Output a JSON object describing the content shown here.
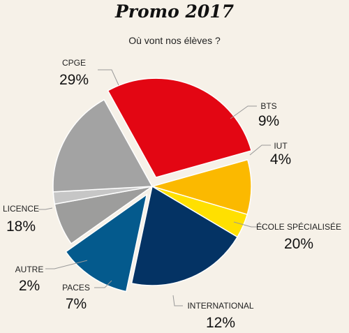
{
  "chart_data": {
    "type": "pie",
    "title": "Promo 2017",
    "subtitle": "Où vont nos élèves ?",
    "slices": [
      {
        "label": "CPGE",
        "value": 29,
        "display": "29%",
        "color": "#e30613",
        "exploded": true
      },
      {
        "label": "BTS",
        "value": 9,
        "display": "9%",
        "color": "#fbb900",
        "exploded": false
      },
      {
        "label": "IUT",
        "value": 4,
        "display": "4%",
        "color": "#ffe000",
        "exploded": false
      },
      {
        "label": "ÉCOLE SPÉCIALISÉE",
        "value": 20,
        "display": "20%",
        "color": "#043364",
        "exploded": false
      },
      {
        "label": "INTERNATIONAL",
        "value": 12,
        "display": "12%",
        "color": "#045a8d",
        "exploded": true
      },
      {
        "label": "PACES",
        "value": 7,
        "display": "7%",
        "color": "#9d9d9c",
        "exploded": false
      },
      {
        "label": "AUTRE",
        "value": 2,
        "display": "2%",
        "color": "#c6c6c6",
        "exploded": false
      },
      {
        "label": "LICENCE",
        "value": 18,
        "display": "18%",
        "color": "#a3a3a3",
        "exploded": false
      }
    ]
  }
}
